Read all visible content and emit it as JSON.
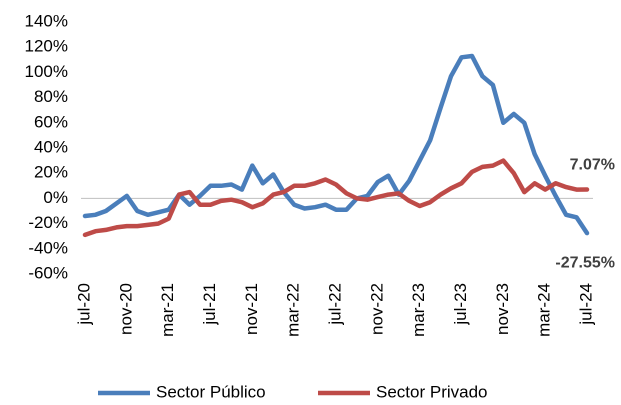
{
  "chart_data": {
    "type": "line",
    "categories": [
      "jul-20",
      null,
      null,
      null,
      "nov-20",
      null,
      null,
      null,
      "mar-21",
      null,
      null,
      null,
      "jul-21",
      null,
      null,
      null,
      "nov-21",
      null,
      null,
      null,
      "mar-22",
      null,
      null,
      null,
      "jul-22",
      null,
      null,
      null,
      "nov-22",
      null,
      null,
      null,
      "mar-23",
      null,
      null,
      null,
      "jul-23",
      null,
      null,
      null,
      "nov-23",
      null,
      null,
      null,
      "mar-24",
      null,
      null,
      null,
      "jul-24"
    ],
    "series": [
      {
        "name": "Sector Público",
        "color": "#4a7ebb",
        "values": [
          -14,
          -13,
          -10,
          -4,
          2,
          -10,
          -13,
          -11,
          -9,
          3,
          -5,
          2,
          10,
          10,
          11,
          7,
          26,
          12,
          19,
          5,
          -5,
          -8,
          -7,
          -5,
          -9,
          -9,
          0,
          2,
          13,
          18,
          3,
          14,
          30,
          46,
          72,
          97,
          112,
          113,
          97,
          90,
          60,
          67,
          60,
          35,
          18,
          2,
          -13,
          -15,
          -27.55
        ],
        "value_labels": [
          null,
          null,
          null,
          null,
          null,
          null,
          null,
          null,
          null,
          null,
          null,
          null,
          null,
          null,
          null,
          null,
          null,
          null,
          null,
          null,
          null,
          null,
          null,
          null,
          null,
          null,
          null,
          null,
          null,
          null,
          null,
          null,
          null,
          null,
          null,
          null,
          null,
          null,
          null,
          null,
          null,
          null,
          null,
          null,
          null,
          null,
          null,
          null,
          "-27.55%"
        ]
      },
      {
        "name": "Sector Privado",
        "color": "#be4b48",
        "values": [
          -29,
          -26,
          -25,
          -23,
          -22,
          -22,
          -21,
          -20,
          -16,
          3,
          5,
          -5,
          -5,
          -2,
          -1,
          -3,
          -7,
          -4,
          3,
          5,
          10,
          10,
          12,
          15,
          11,
          4,
          0,
          -1,
          1,
          3,
          4,
          -2,
          -6,
          -3,
          3,
          8,
          12,
          21,
          25,
          26,
          30,
          20,
          5,
          12,
          7,
          12,
          9,
          7,
          7.07
        ],
        "value_labels": [
          null,
          null,
          null,
          null,
          null,
          null,
          null,
          null,
          null,
          null,
          null,
          null,
          null,
          null,
          null,
          null,
          null,
          null,
          null,
          null,
          null,
          null,
          null,
          null,
          null,
          null,
          null,
          null,
          null,
          null,
          null,
          null,
          null,
          null,
          null,
          null,
          null,
          null,
          null,
          null,
          null,
          null,
          null,
          null,
          null,
          null,
          null,
          null,
          "7.07%"
        ]
      }
    ],
    "ylim": [
      -60,
      140
    ],
    "yticks": [
      {
        "value": -60,
        "label": "-60%"
      },
      {
        "value": -40,
        "label": "-40%"
      },
      {
        "value": -20,
        "label": "-20%"
      },
      {
        "value": 0,
        "label": "0%"
      },
      {
        "value": 20,
        "label": "20%"
      },
      {
        "value": 40,
        "label": "40%"
      },
      {
        "value": 60,
        "label": "60%"
      },
      {
        "value": 80,
        "label": "80%"
      },
      {
        "value": 100,
        "label": "100%"
      },
      {
        "value": 120,
        "label": "120%"
      },
      {
        "value": 140,
        "label": "140%"
      }
    ],
    "legend": "bottom"
  }
}
